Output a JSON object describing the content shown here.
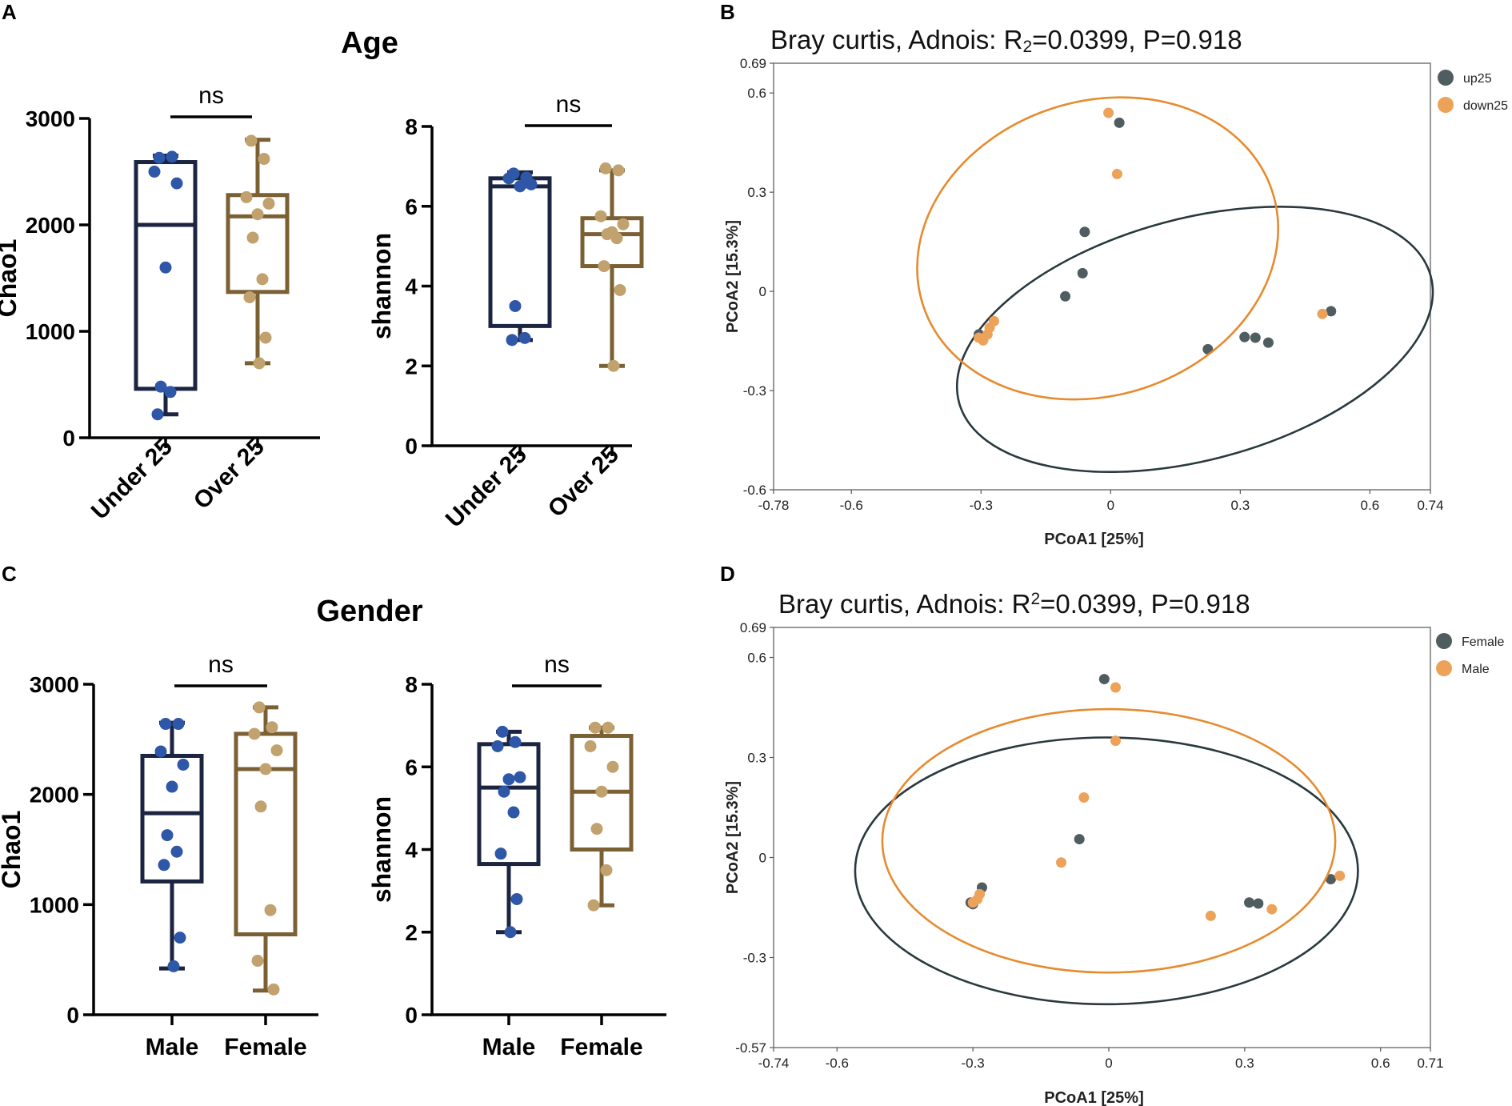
{
  "colors": {
    "navy": "#1b2440",
    "brown": "#7b6034",
    "blue_dot": "#2f57a8",
    "tan_dot": "#c1a26f",
    "dark_slate": "#29393d",
    "pt_dark": "#4f5c60",
    "orange": "#e68b2f",
    "pt_orange": "#eda25a"
  },
  "panels": {
    "A": {
      "letter": "A",
      "heading": "Age"
    },
    "B": {
      "letter": "B"
    },
    "C": {
      "letter": "C",
      "heading": "Gender"
    },
    "D": {
      "letter": "D"
    }
  },
  "chart_data": [
    {
      "id": "A1",
      "panel": "A",
      "type": "box",
      "ylabel": "Chao1",
      "ylim": [
        0,
        3000
      ],
      "yticks": [
        "0",
        "1000",
        "2000",
        "3000"
      ],
      "categories": [
        "Under 25",
        "Over 25"
      ],
      "rotated_labels": true,
      "sig": "ns",
      "groups": [
        {
          "name": "Under 25",
          "color": "navy",
          "dot": "blue_dot",
          "min": 220,
          "q1": 460,
          "median": 2000,
          "q3": 2590,
          "max": 2650,
          "points": [
            2630,
            2640,
            2500,
            2390,
            1600,
            480,
            430,
            220
          ]
        },
        {
          "name": "Over 25",
          "color": "brown",
          "dot": "tan_dot",
          "min": 700,
          "q1": 1370,
          "median": 2080,
          "q3": 2280,
          "max": 2800,
          "points": [
            2790,
            2620,
            2260,
            2200,
            2100,
            1880,
            1490,
            1320,
            940,
            700
          ]
        }
      ]
    },
    {
      "id": "A2",
      "panel": "A",
      "type": "box",
      "ylabel": "shannon",
      "ylim": [
        0,
        8
      ],
      "yticks": [
        "0",
        "2",
        "4",
        "6",
        "8"
      ],
      "categories": [
        "Under 25",
        "Over 25"
      ],
      "rotated_labels": true,
      "sig": "ns",
      "groups": [
        {
          "name": "Under 25",
          "color": "navy",
          "dot": "blue_dot",
          "min": 2.65,
          "q1": 3.0,
          "median": 6.5,
          "q3": 6.7,
          "max": 6.85,
          "points": [
            6.82,
            6.72,
            6.7,
            6.55,
            6.5,
            3.5,
            2.7,
            2.65
          ]
        },
        {
          "name": "Over 25",
          "color": "brown",
          "dot": "tan_dot",
          "min": 2.0,
          "q1": 4.5,
          "median": 5.3,
          "q3": 5.7,
          "max": 6.9,
          "points": [
            6.95,
            6.9,
            5.75,
            5.55,
            5.35,
            5.3,
            5.2,
            4.5,
            3.9,
            2.0
          ]
        }
      ]
    },
    {
      "id": "B",
      "panel": "B",
      "type": "scatter",
      "title_parts": [
        "Bray curtis, Adnois: R",
        "2",
        "=0.0399, P=0.918"
      ],
      "title_script": "sub",
      "xlabel": "PCoA1 [25%]",
      "ylabel": "PCoA2 [15.3%]",
      "xlim": [
        -0.78,
        0.74
      ],
      "ylim": [
        -0.6,
        0.69
      ],
      "xticks": [
        "-0.78",
        "-0.6",
        "-0.3",
        "0",
        "0.3",
        "0.6",
        "0.74"
      ],
      "yticks": [
        "0.69",
        "0.6",
        "0.3",
        "0",
        "-0.3",
        "-0.6"
      ],
      "series": [
        {
          "name": "up25",
          "color": "pt_dark",
          "points": [
            [
              0.02,
              0.51
            ],
            [
              -0.06,
              0.18
            ],
            [
              -0.065,
              0.055
            ],
            [
              -0.105,
              -0.015
            ],
            [
              -0.305,
              -0.13
            ],
            [
              0.225,
              -0.175
            ],
            [
              0.31,
              -0.138
            ],
            [
              0.335,
              -0.14
            ],
            [
              0.365,
              -0.155
            ],
            [
              0.51,
              -0.06
            ]
          ],
          "ellipse": {
            "cx": 0.195,
            "cy": -0.145,
            "rx": 0.565,
            "ry": 0.365,
            "angle": -15
          }
        },
        {
          "name": "down25",
          "color": "pt_orange",
          "points": [
            [
              -0.005,
              0.54
            ],
            [
              0.015,
              0.355
            ],
            [
              -0.305,
              -0.14
            ],
            [
              -0.295,
              -0.148
            ],
            [
              -0.285,
              -0.13
            ],
            [
              -0.28,
              -0.11
            ],
            [
              -0.27,
              -0.09
            ],
            [
              0.49,
              -0.068
            ]
          ],
          "ellipse": {
            "cx": -0.03,
            "cy": 0.13,
            "rx": 0.425,
            "ry": 0.445,
            "angle": -18
          }
        }
      ]
    },
    {
      "id": "C1",
      "panel": "C",
      "type": "box",
      "ylabel": "Chao1",
      "ylim": [
        0,
        3000
      ],
      "yticks": [
        "0",
        "1000",
        "2000",
        "3000"
      ],
      "categories": [
        "Male",
        "Female"
      ],
      "rotated_labels": false,
      "sig": "ns",
      "groups": [
        {
          "name": "Male",
          "color": "navy",
          "dot": "blue_dot",
          "min": 420,
          "q1": 1210,
          "median": 1830,
          "q3": 2350,
          "max": 2650,
          "points": [
            2640,
            2640,
            2390,
            2270,
            2070,
            1630,
            1480,
            1360,
            700,
            440
          ]
        },
        {
          "name": "Female",
          "color": "brown",
          "dot": "tan_dot",
          "min": 220,
          "q1": 730,
          "median": 2230,
          "q3": 2550,
          "max": 2790,
          "points": [
            2790,
            2610,
            2550,
            2400,
            2230,
            1890,
            950,
            490,
            230
          ]
        }
      ]
    },
    {
      "id": "C2",
      "panel": "C",
      "type": "box",
      "ylabel": "shannon",
      "ylim": [
        0,
        8
      ],
      "yticks": [
        "0",
        "2",
        "4",
        "6",
        "8"
      ],
      "categories": [
        "Male",
        "Female"
      ],
      "rotated_labels": false,
      "sig": "ns",
      "groups": [
        {
          "name": "Male",
          "color": "navy",
          "dot": "blue_dot",
          "min": 2.0,
          "q1": 3.65,
          "median": 5.5,
          "q3": 6.55,
          "max": 6.85,
          "points": [
            6.85,
            6.6,
            6.5,
            5.75,
            5.7,
            5.4,
            4.9,
            3.9,
            2.8,
            2.0
          ]
        },
        {
          "name": "Female",
          "color": "brown",
          "dot": "tan_dot",
          "min": 2.65,
          "q1": 4.0,
          "median": 5.4,
          "q3": 6.75,
          "max": 6.95,
          "points": [
            6.95,
            6.95,
            6.5,
            6.0,
            5.4,
            4.5,
            3.5,
            2.65
          ]
        }
      ]
    },
    {
      "id": "D",
      "panel": "D",
      "type": "scatter",
      "title_parts": [
        "Bray curtis, Adnois: R",
        "2",
        "=0.0399, P=0.918"
      ],
      "title_script": "super",
      "xlabel": "PCoA1 [25%]",
      "ylabel": "PCoA2 [15.3%]",
      "xlim": [
        -0.74,
        0.71
      ],
      "ylim": [
        -0.57,
        0.69
      ],
      "xticks": [
        "-0.74",
        "-0.6",
        "-0.3",
        "0",
        "0.3",
        "0.6",
        "0.71"
      ],
      "yticks": [
        "0.69",
        "0.6",
        "0.3",
        "0",
        "-0.3",
        "-0.57"
      ],
      "series": [
        {
          "name": "Female",
          "color": "pt_dark",
          "points": [
            [
              -0.01,
              0.535
            ],
            [
              -0.065,
              0.055
            ],
            [
              -0.305,
              -0.135
            ],
            [
              -0.3,
              -0.14
            ],
            [
              -0.28,
              -0.09
            ],
            [
              0.31,
              -0.135
            ],
            [
              0.33,
              -0.138
            ],
            [
              0.49,
              -0.065
            ]
          ],
          "ellipse": {
            "cx": -0.005,
            "cy": -0.04,
            "rx": 0.555,
            "ry": 0.4,
            "angle": 0
          }
        },
        {
          "name": "Male",
          "color": "pt_orange",
          "points": [
            [
              0.015,
              0.51
            ],
            [
              0.015,
              0.35
            ],
            [
              -0.055,
              0.18
            ],
            [
              -0.105,
              -0.015
            ],
            [
              -0.3,
              -0.135
            ],
            [
              -0.29,
              -0.125
            ],
            [
              -0.285,
              -0.11
            ],
            [
              0.225,
              -0.175
            ],
            [
              0.36,
              -0.155
            ],
            [
              0.51,
              -0.055
            ]
          ],
          "ellipse": {
            "cx": 0.0,
            "cy": 0.05,
            "rx": 0.5,
            "ry": 0.395,
            "angle": 0
          }
        }
      ]
    }
  ]
}
